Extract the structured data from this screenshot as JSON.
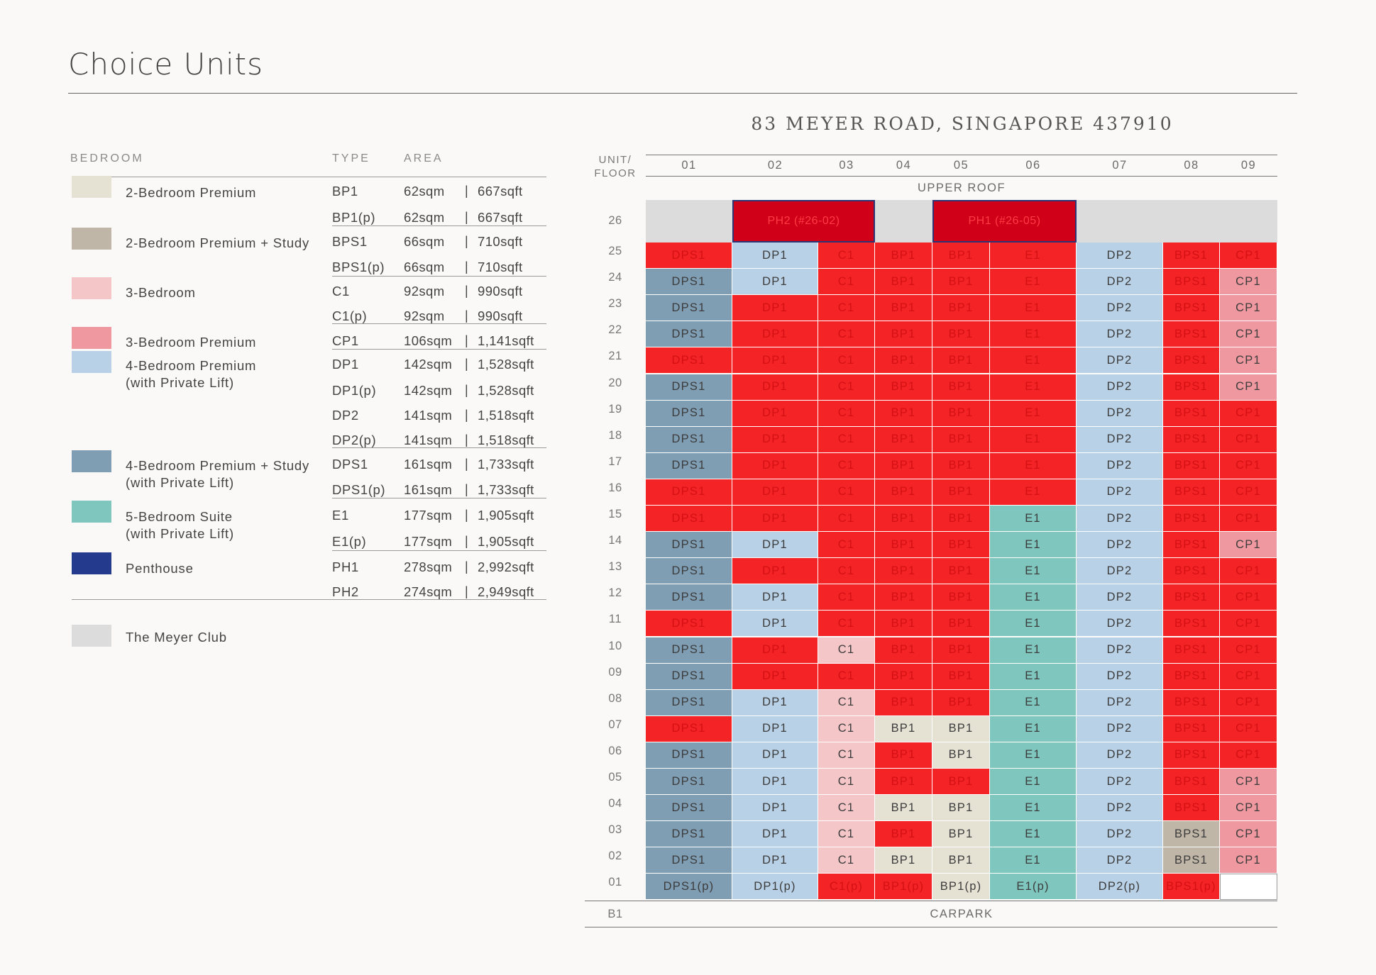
{
  "title": "Choice Units",
  "address": "83 MEYER ROAD, SINGAPORE 437910",
  "legend": {
    "headers": {
      "bedroom": "BEDROOM",
      "type": "TYPE",
      "area": "AREA"
    },
    "groups": [
      {
        "label": "2-Bedroom Premium",
        "color": "#e5e1d3",
        "types": [
          {
            "type": "BP1",
            "sqm": "62sqm",
            "sqft": "667sqft"
          },
          {
            "type": "BP1(p)",
            "sqm": "62sqm",
            "sqft": "667sqft"
          }
        ]
      },
      {
        "label": "2-Bedroom Premium + Study",
        "color": "#c0b6a7",
        "types": [
          {
            "type": "BPS1",
            "sqm": "66sqm",
            "sqft": "710sqft"
          },
          {
            "type": "BPS1(p)",
            "sqm": "66sqm",
            "sqft": "710sqft"
          }
        ]
      },
      {
        "label": "3-Bedroom",
        "color": "#f4c6c8",
        "types": [
          {
            "type": "C1",
            "sqm": "92sqm",
            "sqft": "990sqft"
          },
          {
            "type": "C1(p)",
            "sqm": "92sqm",
            "sqft": "990sqft"
          }
        ]
      },
      {
        "label": "3-Bedroom Premium",
        "color": "#ef98a0",
        "types": [
          {
            "type": "CP1",
            "sqm": "106sqm",
            "sqft": "1,141sqft"
          }
        ]
      },
      {
        "label": "4-Bedroom Premium",
        "label2": "(with Private Lift)",
        "color": "#b9d1e6",
        "types": [
          {
            "type": "DP1",
            "sqm": "142sqm",
            "sqft": "1,528sqft"
          },
          {
            "type": "DP1(p)",
            "sqm": "142sqm",
            "sqft": "1,528sqft"
          },
          {
            "type": "DP2",
            "sqm": "141sqm",
            "sqft": "1,518sqft"
          },
          {
            "type": "DP2(p)",
            "sqm": "141sqm",
            "sqft": "1,518sqft"
          }
        ]
      },
      {
        "label": "4-Bedroom Premium + Study",
        "label2": "(with Private Lift)",
        "color": "#7f9db3",
        "types": [
          {
            "type": "DPS1",
            "sqm": "161sqm",
            "sqft": "1,733sqft"
          },
          {
            "type": "DPS1(p)",
            "sqm": "161sqm",
            "sqft": "1,733sqft"
          }
        ]
      },
      {
        "label": "5-Bedroom Suite",
        "label2": "(with Private Lift)",
        "color": "#7fc6be",
        "types": [
          {
            "type": "E1",
            "sqm": "177sqm",
            "sqft": "1,905sqft"
          },
          {
            "type": "E1(p)",
            "sqm": "177sqm",
            "sqft": "1,905sqft"
          }
        ]
      },
      {
        "label": "Penthouse",
        "color": "#243a8c",
        "types": [
          {
            "type": "PH1",
            "sqm": "278sqm",
            "sqft": "2,992sqft"
          },
          {
            "type": "PH2",
            "sqm": "274sqm",
            "sqft": "2,949sqft"
          }
        ]
      }
    ],
    "club": {
      "label": "The Meyer Club",
      "color": "#dcdcdc"
    }
  },
  "chart": {
    "corner_label_1": "UNIT/",
    "corner_label_2": "FLOOR",
    "units": [
      "01",
      "02",
      "03",
      "04",
      "05",
      "06",
      "07",
      "08",
      "09"
    ],
    "upper_roof_label": "UPPER ROOF",
    "basement_floor": "B1",
    "carpark_label": "CARPARK",
    "sold_color": "#f42326",
    "unit_types": [
      "DPS1",
      "DP1",
      "C1",
      "BP1",
      "BP1",
      "E1",
      "DP2",
      "BPS1",
      "CP1"
    ],
    "roof_floor": "26",
    "penthouses": [
      {
        "label": "PH2 (#26-02)"
      },
      {
        "label": "PH1 (#26-05)"
      }
    ],
    "floors": [
      {
        "floor": "25",
        "sold": [
          1,
          0,
          1,
          1,
          1,
          1,
          0,
          1,
          1
        ]
      },
      {
        "floor": "24",
        "sold": [
          0,
          0,
          1,
          1,
          1,
          1,
          0,
          1,
          0
        ]
      },
      {
        "floor": "23",
        "sold": [
          0,
          1,
          1,
          1,
          1,
          1,
          0,
          1,
          0
        ]
      },
      {
        "floor": "22",
        "sold": [
          0,
          1,
          1,
          1,
          1,
          1,
          0,
          1,
          0
        ]
      },
      {
        "floor": "21",
        "sold": [
          1,
          1,
          1,
          1,
          1,
          1,
          0,
          1,
          0
        ]
      },
      {
        "floor": "20",
        "sold": [
          0,
          1,
          1,
          1,
          1,
          1,
          0,
          1,
          0
        ]
      },
      {
        "floor": "19",
        "sold": [
          0,
          1,
          1,
          1,
          1,
          1,
          0,
          1,
          1
        ]
      },
      {
        "floor": "18",
        "sold": [
          0,
          1,
          1,
          1,
          1,
          1,
          0,
          1,
          1
        ]
      },
      {
        "floor": "17",
        "sold": [
          0,
          1,
          1,
          1,
          1,
          1,
          0,
          1,
          1
        ]
      },
      {
        "floor": "16",
        "sold": [
          1,
          1,
          1,
          1,
          1,
          1,
          0,
          1,
          1
        ]
      },
      {
        "floor": "15",
        "sold": [
          1,
          1,
          1,
          1,
          1,
          0,
          0,
          1,
          1
        ]
      },
      {
        "floor": "14",
        "sold": [
          0,
          0,
          1,
          1,
          1,
          0,
          0,
          1,
          0
        ]
      },
      {
        "floor": "13",
        "sold": [
          0,
          1,
          1,
          1,
          1,
          0,
          0,
          1,
          1
        ]
      },
      {
        "floor": "12",
        "sold": [
          0,
          0,
          1,
          1,
          1,
          0,
          0,
          1,
          1
        ]
      },
      {
        "floor": "11",
        "sold": [
          1,
          0,
          1,
          1,
          1,
          0,
          0,
          1,
          1
        ]
      },
      {
        "floor": "10",
        "sold": [
          0,
          1,
          0,
          1,
          1,
          0,
          0,
          1,
          1
        ]
      },
      {
        "floor": "09",
        "sold": [
          0,
          1,
          1,
          1,
          1,
          0,
          0,
          1,
          1
        ]
      },
      {
        "floor": "08",
        "sold": [
          0,
          0,
          0,
          1,
          1,
          0,
          0,
          1,
          1
        ]
      },
      {
        "floor": "07",
        "sold": [
          1,
          0,
          0,
          0,
          0,
          0,
          0,
          1,
          1
        ]
      },
      {
        "floor": "06",
        "sold": [
          0,
          0,
          0,
          1,
          0,
          0,
          0,
          1,
          1
        ]
      },
      {
        "floor": "05",
        "sold": [
          0,
          0,
          0,
          1,
          1,
          0,
          0,
          1,
          0
        ]
      },
      {
        "floor": "04",
        "sold": [
          0,
          0,
          0,
          0,
          0,
          0,
          0,
          1,
          0
        ]
      },
      {
        "floor": "03",
        "sold": [
          0,
          0,
          0,
          1,
          0,
          0,
          0,
          0,
          0
        ]
      },
      {
        "floor": "02",
        "sold": [
          0,
          0,
          0,
          0,
          0,
          0,
          0,
          0,
          0
        ]
      }
    ],
    "ground": {
      "floor": "01",
      "cells": [
        {
          "label": "DPS1(p)",
          "sold": 0
        },
        {
          "label": "DP1(p)",
          "sold": 0
        },
        {
          "label": "C1(p)",
          "sold": 1
        },
        {
          "label": "BP1(p)",
          "sold": 1
        },
        {
          "label": "BP1(p)",
          "sold": 0
        },
        {
          "label": "E1(p)",
          "sold": 0
        },
        {
          "label": "DP2(p)",
          "sold": 0
        },
        {
          "label": "BPS1(p)",
          "sold": 1
        },
        {
          "label": "",
          "sold": 0
        }
      ]
    }
  }
}
